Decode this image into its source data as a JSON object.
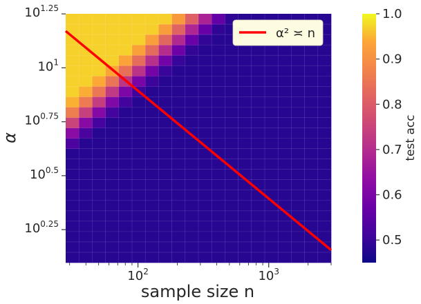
{
  "chart_data": {
    "type": "heatmap",
    "xlabel": "sample size n",
    "ylabel": "α",
    "x_scale": "log",
    "y_scale": "log",
    "xlim": [
      28,
      3000
    ],
    "ylim": [
      1.25,
      17.8
    ],
    "x_ticks": [
      {
        "value": 100,
        "base": "10",
        "exp": "2"
      },
      {
        "value": 1000,
        "base": "10",
        "exp": "3"
      }
    ],
    "y_ticks": [
      {
        "value": 17.78,
        "base": "10",
        "exp": "1.25"
      },
      {
        "value": 10,
        "base": "10",
        "exp": "1"
      },
      {
        "value": 5.623,
        "base": "10",
        "exp": "0.75"
      },
      {
        "value": 3.162,
        "base": "10",
        "exp": "0.5"
      },
      {
        "value": 1.778,
        "base": "10",
        "exp": "0.25"
      }
    ],
    "grid": {
      "x_cells": 20,
      "y_cells": 24
    },
    "colorscale": "plasma",
    "colorbar": {
      "label": "test acc",
      "range": [
        0.45,
        1.0
      ],
      "ticks": [
        "0.5",
        "0.6",
        "0.7",
        "0.8",
        "0.9",
        "1.0"
      ],
      "tick_values": [
        0.5,
        0.6,
        0.7,
        0.8,
        0.9,
        1.0
      ]
    },
    "boundary": "α² ≍ n",
    "value_low": 0.48,
    "value_high": 0.97,
    "transition_alpha_times_sqrt_n_lower": 0.7,
    "transition_alpha_times_sqrt_n_upper": 1.35,
    "overlay_line": {
      "name": "α² ≍ n",
      "color": "#ff0000",
      "start": [
        28,
        14.8
      ],
      "end": [
        3000,
        1.43
      ]
    },
    "legend": {
      "position": "top-right",
      "entries": [
        {
          "label": "α² ≍ n",
          "color": "#ff0000"
        }
      ]
    }
  }
}
